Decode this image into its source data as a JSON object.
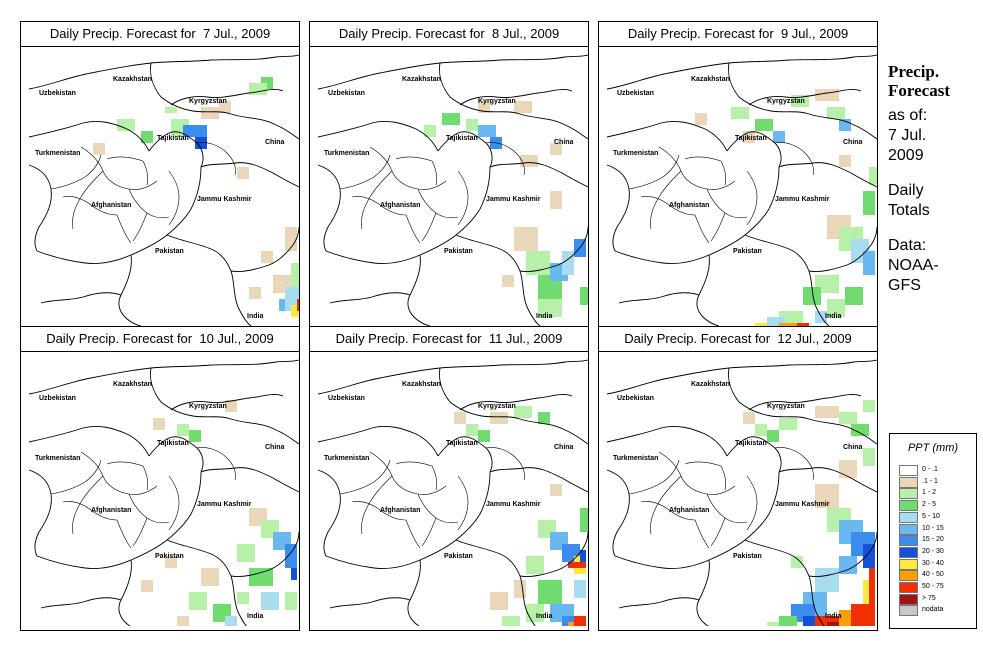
{
  "panels": [
    {
      "title": "Daily Precip. Forecast for  7 Jul., 2009"
    },
    {
      "title": "Daily Precip. Forecast for  8 Jul., 2009"
    },
    {
      "title": "Daily Precip. Forecast for  9 Jul., 2009"
    },
    {
      "title": "Daily Precip. Forecast for  10 Jul., 2009"
    },
    {
      "title": "Daily Precip. Forecast for  11 Jul., 2009"
    },
    {
      "title": "Daily Precip. Forecast for  12 Jul., 2009"
    }
  ],
  "map_labels": {
    "uzbekistan": "Uzbekistan",
    "kazakhstan": "Kazakhstan",
    "kyrgyzstan": "Kyrgyzstan",
    "tajikistan": "Tajikistan",
    "turkmenistan": "Turkmenistan",
    "china": "China",
    "afghanistan": "Afghanistan",
    "jammu_kashmir": "Jammu Kashmir",
    "pakistan": "Pakistan",
    "india": "India"
  },
  "sidebar": {
    "title_line1": "Precip.",
    "title_line2": "Forecast",
    "asof_line1": "as of:",
    "asof_line2": "7 Jul.",
    "asof_line3": "2009",
    "daily_line1": "Daily",
    "daily_line2": "Totals",
    "data_line1": "Data:",
    "data_line2": "NOAA-",
    "data_line3": "GFS"
  },
  "legend": {
    "title": "PPT (mm)",
    "items": [
      {
        "label": "0 - .1",
        "color": "#ffffff"
      },
      {
        "label": ".1 - 1",
        "color": "#ead6b8"
      },
      {
        "label": "1 - 2",
        "color": "#b7f0a8"
      },
      {
        "label": "2 - 5",
        "color": "#70dc70"
      },
      {
        "label": "5 - 10",
        "color": "#a8dcf0"
      },
      {
        "label": "10 - 15",
        "color": "#6ab8f0"
      },
      {
        "label": "15 - 20",
        "color": "#3c8cf0"
      },
      {
        "label": "20 - 30",
        "color": "#1450d8"
      },
      {
        "label": "30 - 40",
        "color": "#ffe840"
      },
      {
        "label": "40 - 50",
        "color": "#ffa000"
      },
      {
        "label": "50 - 75",
        "color": "#f03000"
      },
      {
        "label": "> 75",
        "color": "#a01414"
      },
      {
        "label": "nodata",
        "color": "#c8c8c8"
      }
    ]
  }
}
